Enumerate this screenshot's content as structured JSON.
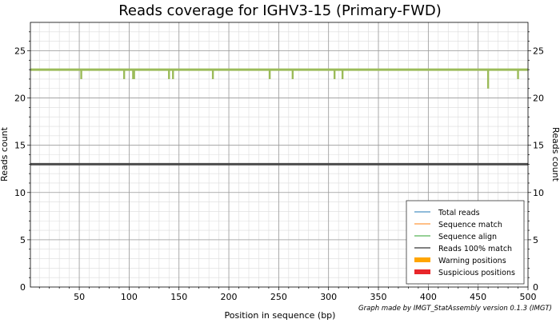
{
  "chart_data": {
    "type": "line",
    "title": "Reads coverage for IGHV3-15 (Primary-FWD)",
    "xlabel": "Position in sequence (bp)",
    "ylabel": "Reads count",
    "y2label": "Reads count",
    "xlim": [
      1,
      500
    ],
    "ylim": [
      0,
      28
    ],
    "xticks": [
      50,
      100,
      150,
      200,
      250,
      300,
      350,
      400,
      450,
      500
    ],
    "yticks": [
      0,
      5,
      10,
      15,
      20,
      25
    ],
    "grid": true,
    "legend_position": "bottom-right",
    "legend": [
      {
        "name": "Total reads",
        "color": "#1f77b4",
        "kind": "line"
      },
      {
        "name": "Sequence match",
        "color": "#ff7f0e",
        "kind": "line"
      },
      {
        "name": "Sequence align",
        "color": "#2ca02c",
        "kind": "line"
      },
      {
        "name": "Reads 100% match",
        "color": "#000000",
        "kind": "line"
      },
      {
        "name": "Warning positions",
        "color": "#ffa500",
        "kind": "patch"
      },
      {
        "name": "Suspicious positions",
        "color": "#e8262a",
        "kind": "patch"
      }
    ],
    "series": [
      {
        "name": "Sequence align",
        "color": "#9bbb59",
        "baseline": 23,
        "dips": [
          [
            52,
            22
          ],
          [
            95,
            22
          ],
          [
            104,
            22
          ],
          [
            105,
            22
          ],
          [
            140,
            22
          ],
          [
            144,
            22
          ],
          [
            184,
            22
          ],
          [
            241,
            22
          ],
          [
            264,
            22
          ],
          [
            306,
            22
          ],
          [
            314,
            22
          ],
          [
            460,
            21
          ],
          [
            490,
            22
          ]
        ]
      },
      {
        "name": "Reads 100% match",
        "color": "#4d4d4d",
        "baseline": 13,
        "dips": []
      }
    ],
    "credit": "Graph made by IMGT_StatAssembly version 0.1.3 (IMGT)"
  }
}
